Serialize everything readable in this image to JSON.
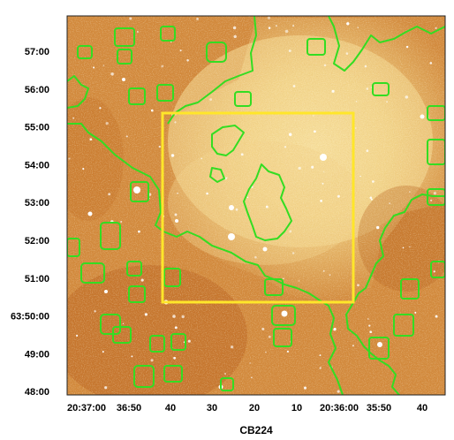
{
  "figure": {
    "caption": "CB224",
    "dec_labels": [
      "57:00",
      "56:00",
      "55:00",
      "54:00",
      "53:00",
      "52:00",
      "51:00",
      "63:50:00",
      "49:00",
      "48:00"
    ],
    "ra_labels": [
      "20:37:00",
      "36:50",
      "40",
      "30",
      "20",
      "10",
      "20:36:00",
      "35:50",
      "40"
    ],
    "colors": {
      "background_dark": "#c06a22",
      "background_mid": "#d99446",
      "background_light": "#f6dc96",
      "contour": "#33dd22",
      "box": "#ffe62a"
    }
  }
}
